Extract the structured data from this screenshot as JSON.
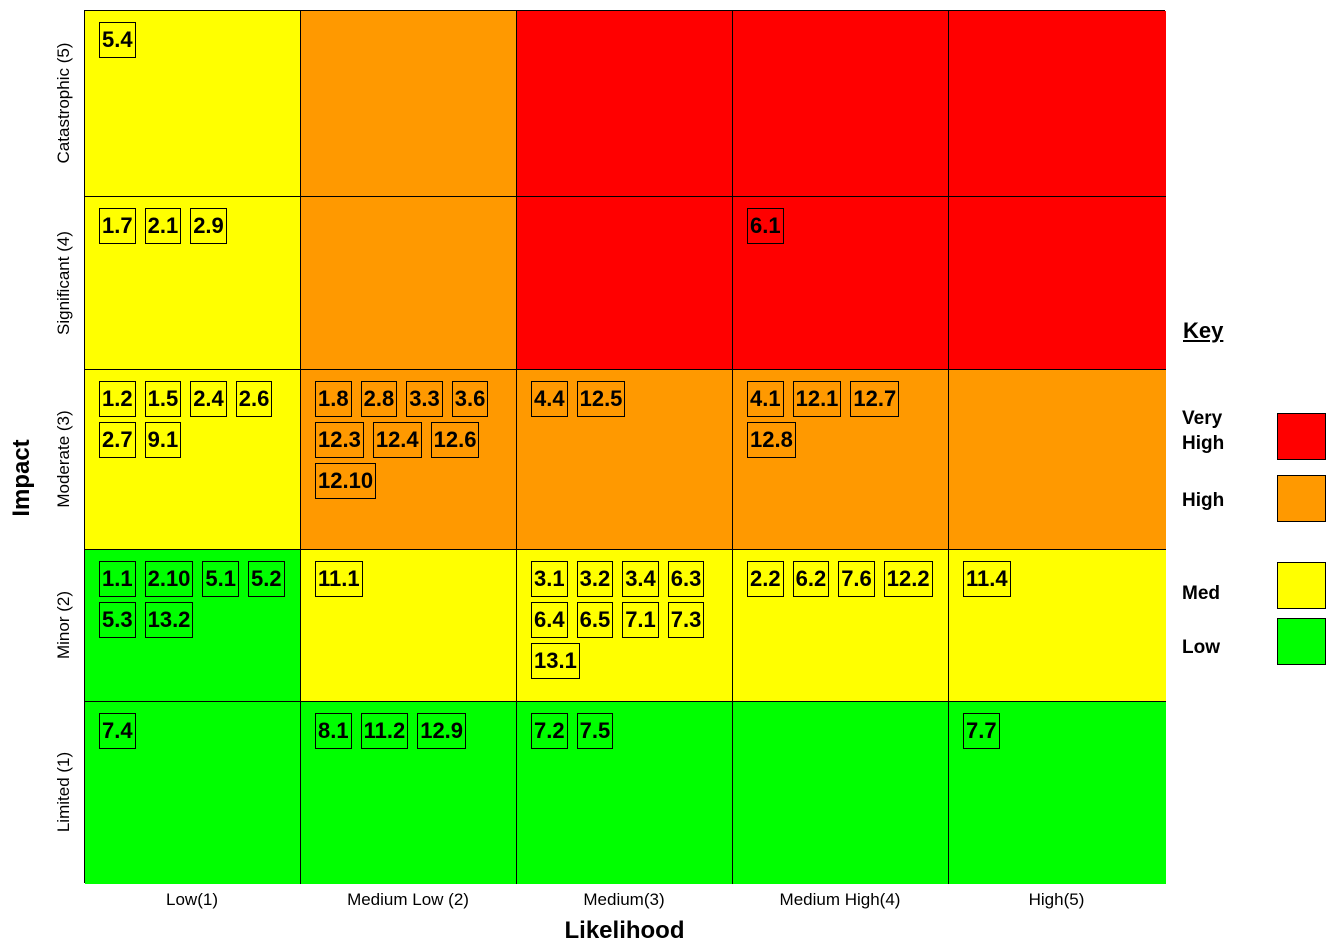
{
  "axes": {
    "y_title": "Impact",
    "x_title": "Likelihood",
    "rows": [
      "Catastrophic (5)",
      "Significant (4)",
      "Moderate (3)",
      "Minor (2)",
      "Limited (1)"
    ],
    "columns": [
      "Low(1)",
      "Medium Low (2)",
      "Medium(3)",
      "Medium High(4)",
      "High(5)"
    ]
  },
  "matrix": [
    [
      {
        "level": "med",
        "items": [
          "5.4"
        ]
      },
      {
        "level": "high",
        "items": []
      },
      {
        "level": "vhigh",
        "items": []
      },
      {
        "level": "vhigh",
        "items": []
      },
      {
        "level": "vhigh",
        "items": []
      }
    ],
    [
      {
        "level": "med",
        "items": [
          "1.7",
          "2.1",
          "2.9"
        ]
      },
      {
        "level": "high",
        "items": []
      },
      {
        "level": "vhigh",
        "items": []
      },
      {
        "level": "vhigh",
        "items": [
          "6.1"
        ]
      },
      {
        "level": "vhigh",
        "items": []
      }
    ],
    [
      {
        "level": "med",
        "items": [
          "1.2",
          "1.5",
          "2.4",
          "2.6",
          "2.7",
          "9.1"
        ]
      },
      {
        "level": "high",
        "items": [
          "1.8",
          "2.8",
          "3.3",
          "3.6",
          "12.3",
          "12.4",
          "12.6",
          "12.10"
        ]
      },
      {
        "level": "high",
        "items": [
          "4.4",
          "12.5"
        ]
      },
      {
        "level": "high",
        "items": [
          "4.1",
          "12.1",
          "12.7",
          "12.8"
        ]
      },
      {
        "level": "high",
        "items": []
      }
    ],
    [
      {
        "level": "low",
        "items": [
          "1.1",
          "2.10",
          "5.1",
          "5.2",
          "5.3",
          "13.2"
        ]
      },
      {
        "level": "med",
        "items": [
          "11.1"
        ]
      },
      {
        "level": "med",
        "items": [
          "3.1",
          "3.2",
          "3.4",
          "6.3",
          "6.4",
          "6.5",
          "7.1",
          "7.3",
          "13.1"
        ]
      },
      {
        "level": "med",
        "items": [
          "2.2",
          "6.2",
          "7.6",
          "12.2"
        ]
      },
      {
        "level": "med",
        "items": [
          "11.4"
        ]
      }
    ],
    [
      {
        "level": "low",
        "items": [
          "7.4"
        ]
      },
      {
        "level": "low",
        "items": [
          "8.1",
          "11.2",
          "12.9"
        ]
      },
      {
        "level": "low",
        "items": [
          "7.2",
          "7.5"
        ]
      },
      {
        "level": "low",
        "items": []
      },
      {
        "level": "low",
        "items": [
          "7.7"
        ]
      }
    ]
  ],
  "key": {
    "title": "Key",
    "items": [
      {
        "label": "Very\nHigh",
        "level": "vhigh",
        "color": "#ff0000"
      },
      {
        "label": "High",
        "level": "high",
        "color": "#ff9900"
      },
      {
        "label": "Med",
        "level": "med",
        "color": "#ffff00"
      },
      {
        "label": "Low",
        "level": "low",
        "color": "#00ff00"
      }
    ]
  },
  "colors": {
    "vhigh": "#ff0000",
    "high": "#ff9900",
    "med": "#ffff00",
    "low": "#00ff00"
  }
}
